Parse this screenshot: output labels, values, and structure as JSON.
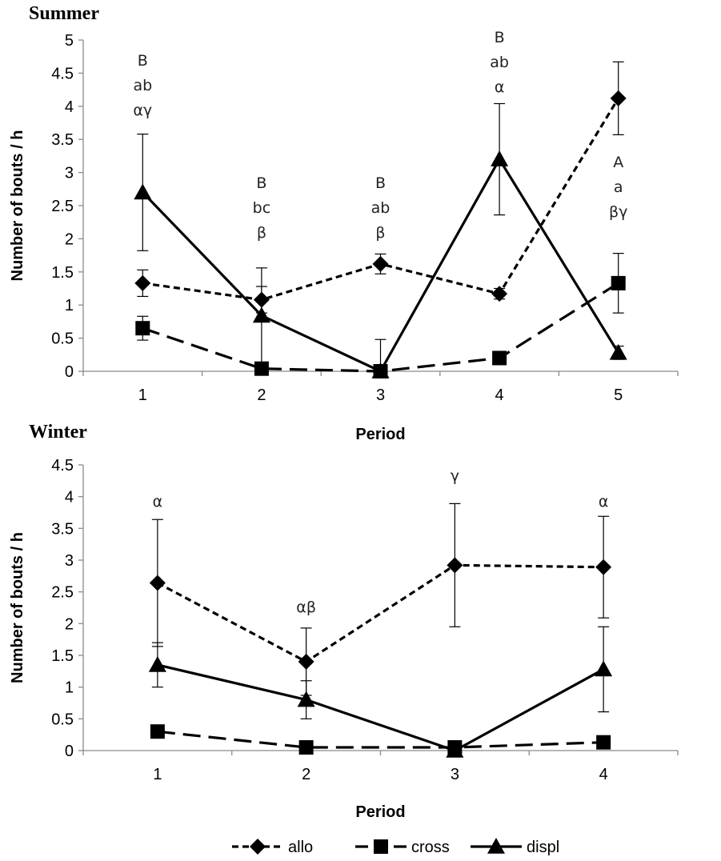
{
  "chart_data": [
    {
      "type": "line",
      "title": "Summer",
      "xlabel": "Period",
      "ylabel": "Number of bouts / h",
      "ylim": [
        0,
        5
      ],
      "ytick_step": 0.5,
      "ytick_labels": [
        "0",
        "0.5",
        "1",
        "1.5",
        "2",
        "2.5",
        "3",
        "3.5",
        "4",
        "4.5",
        "5"
      ],
      "categories": [
        "1",
        "2",
        "3",
        "4",
        "5"
      ],
      "series": [
        {
          "name": "allo",
          "marker": "diamond",
          "dash": "short",
          "values": [
            1.33,
            1.08,
            1.62,
            1.17,
            4.12
          ],
          "errors": [
            0.2,
            0.2,
            0.15,
            0.08,
            0.55
          ]
        },
        {
          "name": "cross",
          "marker": "square",
          "dash": "long",
          "values": [
            0.65,
            0.04,
            0.0,
            0.2,
            1.33
          ],
          "errors": [
            0.18,
            0.08,
            0.0,
            0.05,
            0.45
          ]
        },
        {
          "name": "displ",
          "marker": "triangle",
          "dash": "solid",
          "values": [
            2.7,
            0.84,
            0.0,
            3.2,
            0.28
          ],
          "errors": [
            0.88,
            0.72,
            0.48,
            0.84,
            0.1
          ]
        }
      ],
      "annotations": [
        {
          "x": "1",
          "lines": [
            "B",
            "ab",
            "αγ"
          ]
        },
        {
          "x": "2",
          "lines": [
            "B",
            "bc",
            "β"
          ]
        },
        {
          "x": "3",
          "lines": [
            "B",
            "ab",
            "β"
          ]
        },
        {
          "x": "4",
          "lines": [
            "B",
            "ab",
            "α"
          ]
        },
        {
          "x": "5",
          "lines": [
            "A",
            "a",
            "βγ"
          ]
        }
      ]
    },
    {
      "type": "line",
      "title": "Winter",
      "xlabel": "Period",
      "ylabel": "Number of bouts / h",
      "ylim": [
        0,
        4.5
      ],
      "ytick_step": 0.5,
      "ytick_labels": [
        "0",
        "0.5",
        "1",
        "1.5",
        "2",
        "2.5",
        "3",
        "3.5",
        "4",
        "4.5"
      ],
      "categories": [
        "1",
        "2",
        "3",
        "4"
      ],
      "series": [
        {
          "name": "allo",
          "marker": "diamond",
          "dash": "short",
          "values": [
            2.64,
            1.4,
            2.92,
            2.89
          ],
          "errors": [
            1.0,
            0.53,
            0.97,
            0.8
          ]
        },
        {
          "name": "cross",
          "marker": "square",
          "dash": "long",
          "values": [
            0.3,
            0.05,
            0.05,
            0.13
          ],
          "errors": [
            0.0,
            0.0,
            0.0,
            0.0
          ]
        },
        {
          "name": "displ",
          "marker": "triangle",
          "dash": "solid",
          "values": [
            1.35,
            0.8,
            0.0,
            1.28
          ],
          "errors": [
            0.35,
            0.3,
            0.0,
            0.67
          ]
        }
      ],
      "annotations": [
        {
          "x": "1",
          "lines": [
            "α"
          ]
        },
        {
          "x": "2",
          "lines": [
            "αβ"
          ]
        },
        {
          "x": "3",
          "lines": [
            "γ"
          ]
        },
        {
          "x": "4",
          "lines": [
            "α"
          ]
        }
      ]
    }
  ],
  "legend": {
    "placement": "bottom",
    "items": [
      {
        "label": "allo",
        "marker": "diamond",
        "dash": "short"
      },
      {
        "label": "cross",
        "marker": "square",
        "dash": "long"
      },
      {
        "label": "displ",
        "marker": "triangle",
        "dash": "solid"
      }
    ]
  }
}
